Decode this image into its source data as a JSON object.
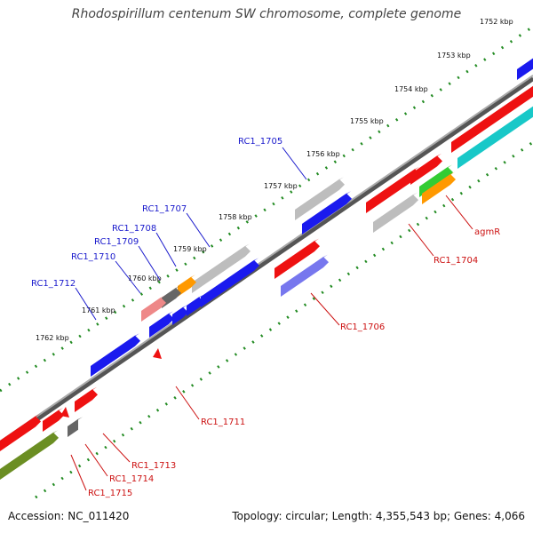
{
  "title": "Rhodospirillum centenum SW chromosome, complete genome",
  "footer": {
    "accession": "Accession: NC_011420",
    "topology": "Topology: circular; Length: 4,355,543 bp; Genes: 4,066"
  },
  "kbp_ticks": [
    "1752 kbp",
    "1753 kbp",
    "1754 kbp",
    "1755 kbp",
    "1756 kbp",
    "1757 kbp",
    "1758 kbp",
    "1759 kbp",
    "1760 kbp",
    "1761 kbp",
    "1762 kbp"
  ],
  "gene_labels_forward": [
    "RC1_1705",
    "RC1_1707",
    "RC1_1708",
    "RC1_1709",
    "RC1_1710",
    "RC1_1712"
  ],
  "gene_labels_reverse": [
    "agmR",
    "RC1_1704",
    "RC1_1706",
    "RC1_1711",
    "RC1_1713",
    "RC1_1714",
    "RC1_1715"
  ],
  "colors": {
    "backbone": "#888888",
    "tick_green": "#228B22",
    "forward_label": "#1a1acc",
    "reverse_label": "#cc1111",
    "blue": "#1a1aee",
    "gray": "#bdbdbd",
    "red": "#ee1111",
    "cyan": "#18c8c8",
    "orange": "#ff9900",
    "green": "#33cc33",
    "purple": "#7777ee",
    "pink": "#ee8888",
    "darkgray": "#666666",
    "olive": "#6b8e23"
  }
}
